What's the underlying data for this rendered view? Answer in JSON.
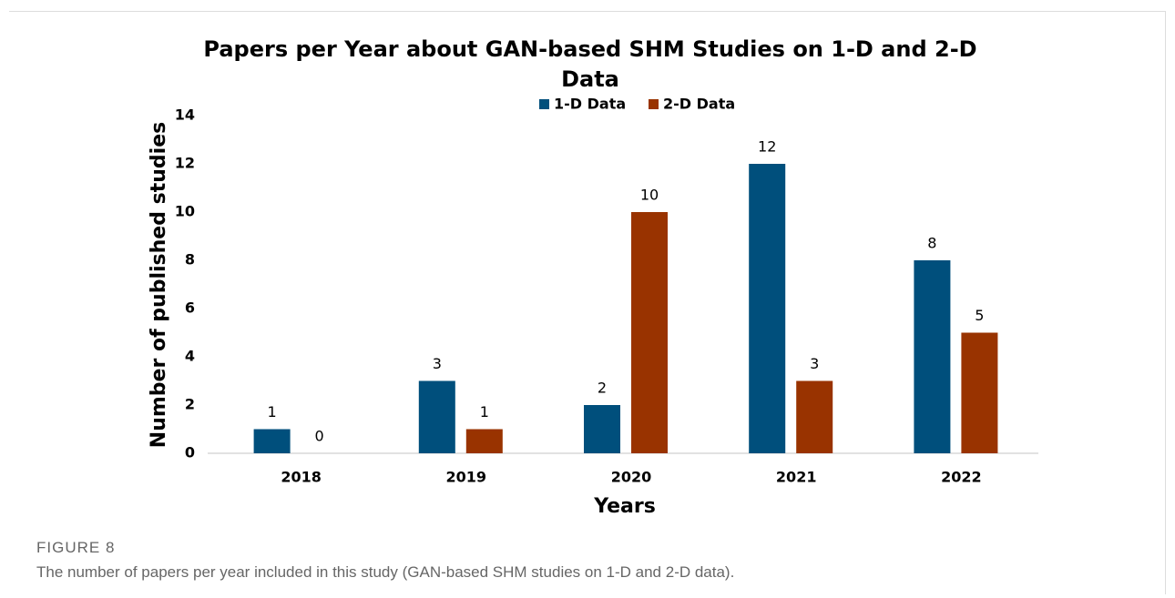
{
  "chart_data": {
    "type": "bar",
    "title": [
      "Papers per Year about GAN-based SHM Studies on 1-D and 2-D",
      "Data"
    ],
    "x_label": "Years",
    "y_label": "Number of published studies",
    "categories": [
      "2018",
      "2019",
      "2020",
      "2021",
      "2022"
    ],
    "series": [
      {
        "name": "1-D Data",
        "color": "#004f7c",
        "values": [
          1,
          3,
          2,
          12,
          8
        ]
      },
      {
        "name": "2-D Data",
        "color": "#993300",
        "values": [
          0,
          1,
          10,
          3,
          5
        ]
      }
    ],
    "ylim": [
      0,
      14
    ],
    "yticks": [
      0,
      2,
      4,
      6,
      8,
      10,
      12,
      14
    ],
    "grid": false,
    "legend": "top"
  },
  "caption": {
    "label": "FIGURE 8",
    "text": "The number of papers per year included in this study (GAN-based SHM studies on 1-D and 2-D data)."
  }
}
